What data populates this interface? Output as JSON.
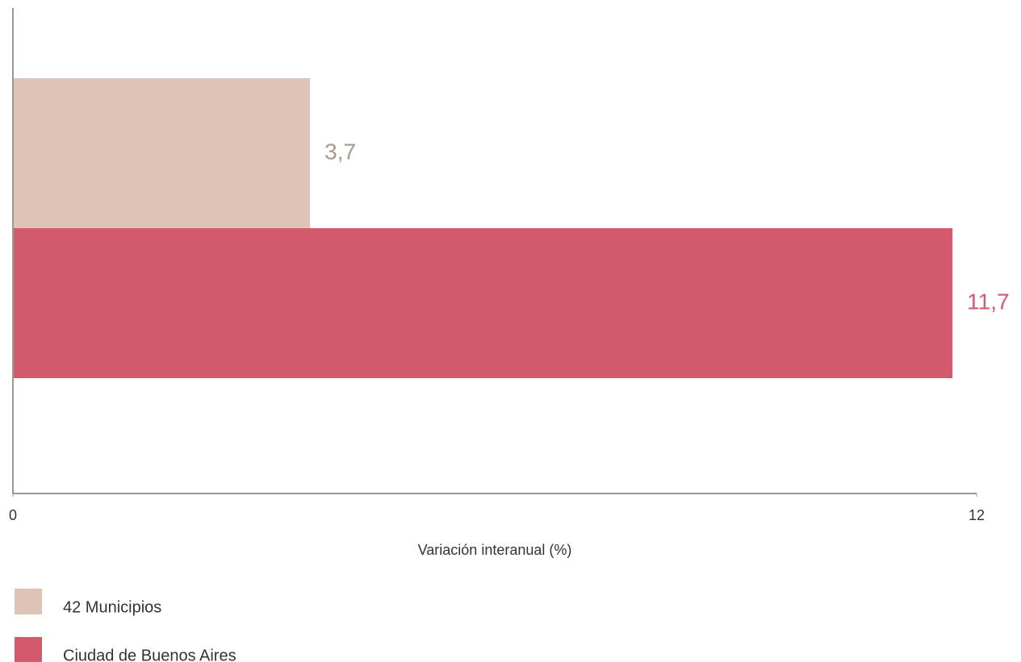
{
  "chart_data": {
    "type": "bar",
    "orientation": "horizontal",
    "series": [
      {
        "name": "42 Municipios",
        "color": "#e0c3b7",
        "label_color": "#a8998b",
        "values": [
          3.7
        ],
        "value_labels": [
          "3,7"
        ]
      },
      {
        "name": "Ciudad de Buenos Aires",
        "color": "#d25a6c",
        "label_color": "#d25a6c",
        "values": [
          11.7
        ],
        "value_labels": [
          "11,7"
        ]
      }
    ],
    "xlabel": "Variación interanual (%)",
    "xlim": [
      0,
      12
    ],
    "xticks": [
      0,
      12
    ]
  }
}
